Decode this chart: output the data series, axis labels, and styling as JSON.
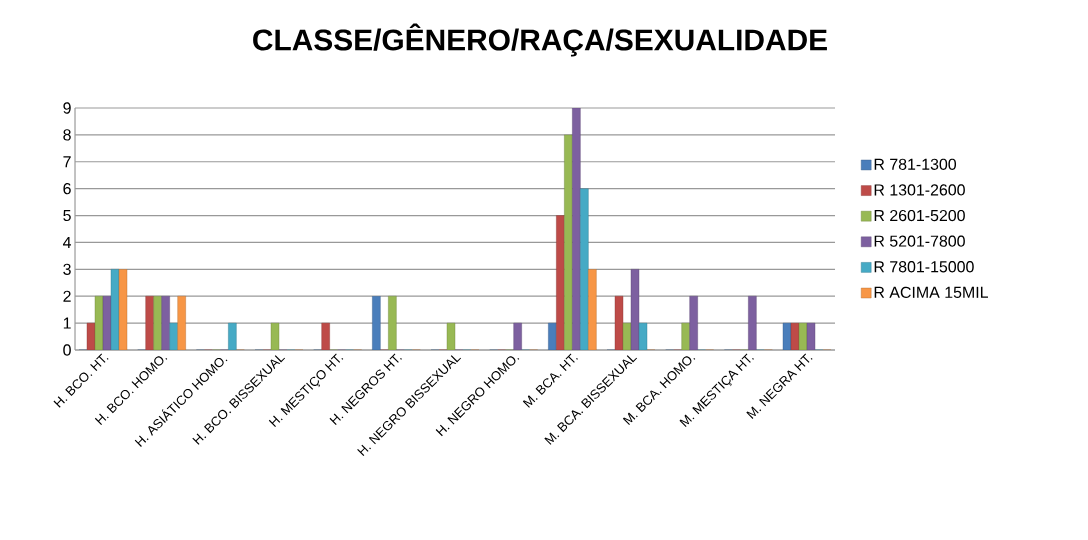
{
  "chart_data": {
    "type": "bar",
    "title": "CLASSE/GÊNERO/RAÇA/SEXUALIDADE",
    "categories": [
      "H. BCO. HT.",
      "H. BCO. HOMO.",
      "H. ASIÁTICO HOMO.",
      "H. BCO. BISSEXUAL",
      "H. MESTIÇO HT.",
      "H. NEGROS HT.",
      "H. NEGRO BISSEXUAL",
      "H. NEGRO HOMO.",
      "M. BCA. HT.",
      "M. BCA. BISSEXUAL",
      "M. BCA. HOMO.",
      "M. MESTIÇA HT.",
      "M. NEGRA HT."
    ],
    "series": [
      {
        "name": "R 781-1300",
        "color": "#4a7ebb",
        "values": [
          0,
          0,
          0,
          0,
          0,
          2,
          0,
          0,
          1,
          0,
          0,
          0,
          1
        ]
      },
      {
        "name": "R 1301-2600",
        "color": "#be4b48",
        "values": [
          1,
          2,
          0,
          0,
          1,
          0,
          0,
          0,
          5,
          2,
          0,
          0,
          1
        ]
      },
      {
        "name": "R 2601-5200",
        "color": "#98b954",
        "values": [
          2,
          2,
          0,
          1,
          0,
          2,
          1,
          0,
          8,
          1,
          1,
          0,
          1
        ]
      },
      {
        "name": "R 5201-7800",
        "color": "#7d60a0",
        "values": [
          2,
          2,
          0,
          0,
          0,
          0,
          0,
          1,
          9,
          3,
          2,
          2,
          1
        ]
      },
      {
        "name": "R 7801-15000",
        "color": "#46aac5",
        "values": [
          3,
          1,
          1,
          0,
          0,
          0,
          0,
          0,
          6,
          1,
          0,
          0,
          0
        ]
      },
      {
        "name": "R ACIMA 15MIL",
        "color": "#f79646",
        "values": [
          3,
          2,
          0,
          0,
          0,
          0,
          0,
          0,
          3,
          0,
          0,
          0,
          0
        ]
      }
    ],
    "ylim": [
      0,
      9
    ],
    "yticks": [
      0,
      1,
      2,
      3,
      4,
      5,
      6,
      7,
      8,
      9
    ],
    "grid": "y",
    "legend": "right"
  }
}
